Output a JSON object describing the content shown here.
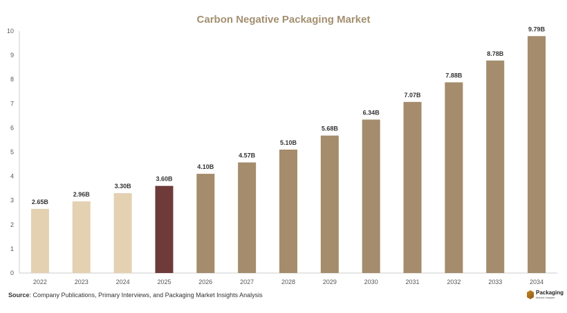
{
  "chart_data": {
    "type": "bar",
    "title": "Carbon Negative Packaging Market",
    "xlabel": "",
    "ylabel": "",
    "categories": [
      "2022",
      "2023",
      "2024",
      "2025",
      "2026",
      "2027",
      "2028",
      "2029",
      "2030",
      "2031",
      "2032",
      "2033",
      "2034"
    ],
    "values": [
      2.65,
      2.96,
      3.3,
      3.6,
      4.1,
      4.57,
      5.1,
      5.68,
      6.34,
      7.07,
      7.88,
      8.78,
      9.79
    ],
    "data_labels": [
      "2.65B",
      "2.96B",
      "3.30B",
      "3.60B",
      "4.10B",
      "4.57B",
      "5.10B",
      "5.68B",
      "6.34B",
      "7.07B",
      "7.88B",
      "8.78B",
      "9.79B"
    ],
    "yticks": [
      "0",
      "1",
      "2",
      "3",
      "4",
      "5",
      "6",
      "7",
      "8",
      "9",
      "10"
    ],
    "ylim": [
      0,
      10
    ],
    "grid": false,
    "legend": "none",
    "colors": {
      "historical": "#e3d1b2",
      "current": "#6e3a3a",
      "forecast": "#a48c6c",
      "title": "#a48f70",
      "axis": "#cccccc"
    },
    "bar_color_groups": [
      "historical",
      "historical",
      "historical",
      "current",
      "forecast",
      "forecast",
      "forecast",
      "forecast",
      "forecast",
      "forecast",
      "forecast",
      "forecast",
      "forecast"
    ]
  },
  "footer": {
    "source_label": "Source",
    "source_text": ": Company Publications, Primary Interviews, and Packaging Market Insights Analysis"
  },
  "brand": {
    "name": "Packaging",
    "subtitle": "Market Insights",
    "icon": "cube-icon"
  }
}
